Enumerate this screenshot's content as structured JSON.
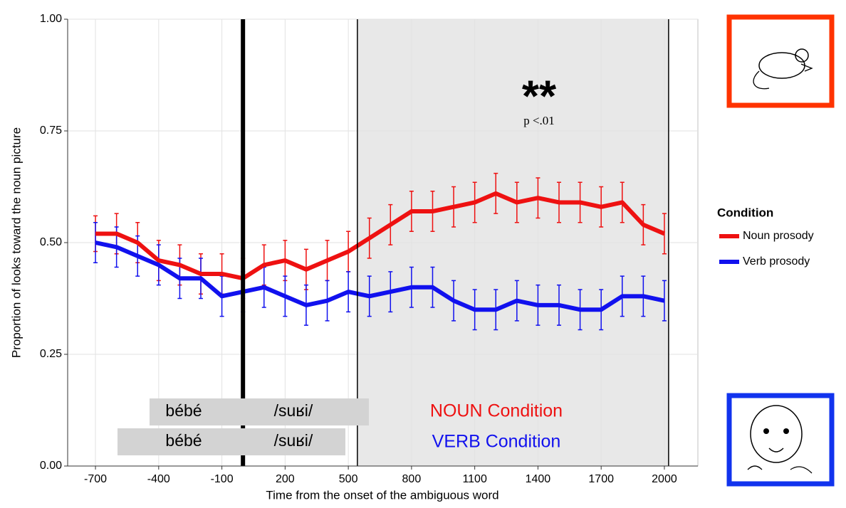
{
  "chart_data": {
    "type": "line",
    "x_label": "Time from the onset of the ambiguous word",
    "y_label": "Proportion of looks toward the noun picture",
    "x": [
      -700,
      -600,
      -500,
      -400,
      -300,
      -200,
      -100,
      0,
      100,
      200,
      300,
      400,
      500,
      600,
      700,
      800,
      900,
      1000,
      1100,
      1200,
      1300,
      1400,
      1500,
      1600,
      1700,
      1800,
      1900,
      2000
    ],
    "series": [
      {
        "name": "Noun prosody",
        "color": "#ee1111",
        "values": [
          0.52,
          0.52,
          0.5,
          0.46,
          0.45,
          0.43,
          0.43,
          0.42,
          0.45,
          0.46,
          0.44,
          0.46,
          0.48,
          0.51,
          0.54,
          0.57,
          0.57,
          0.58,
          0.59,
          0.61,
          0.59,
          0.6,
          0.59,
          0.59,
          0.58,
          0.59,
          0.54,
          0.52
        ],
        "errors": [
          0.04,
          0.045,
          0.045,
          0.045,
          0.045,
          0.045,
          0.045,
          0.045,
          0.045,
          0.045,
          0.045,
          0.045,
          0.045,
          0.045,
          0.045,
          0.045,
          0.045,
          0.045,
          0.045,
          0.045,
          0.045,
          0.045,
          0.045,
          0.045,
          0.045,
          0.045,
          0.045,
          0.045
        ]
      },
      {
        "name": "Verb prosody",
        "color": "#1111ee",
        "values": [
          0.5,
          0.49,
          0.47,
          0.45,
          0.42,
          0.42,
          0.38,
          0.39,
          0.4,
          0.38,
          0.36,
          0.37,
          0.39,
          0.38,
          0.39,
          0.4,
          0.4,
          0.37,
          0.35,
          0.35,
          0.37,
          0.36,
          0.36,
          0.35,
          0.35,
          0.38,
          0.38,
          0.37
        ],
        "errors": [
          0.045,
          0.045,
          0.045,
          0.045,
          0.045,
          0.045,
          0.045,
          0.045,
          0.045,
          0.045,
          0.045,
          0.045,
          0.045,
          0.045,
          0.045,
          0.045,
          0.045,
          0.045,
          0.045,
          0.045,
          0.045,
          0.045,
          0.045,
          0.045,
          0.045,
          0.045,
          0.045,
          0.045
        ]
      }
    ],
    "xlim": [
      -832,
      2159
    ],
    "ylim": [
      0,
      1
    ],
    "xticks": [
      -700,
      -400,
      -100,
      200,
      500,
      800,
      1100,
      1400,
      1700,
      2000
    ],
    "yticks": [
      {
        "value": 0,
        "label": "0.00"
      },
      {
        "value": 0.25,
        "label": "0.25"
      },
      {
        "value": 0.5,
        "label": "0.50"
      },
      {
        "value": 0.75,
        "label": "0.75"
      },
      {
        "value": 1,
        "label": "1.00"
      }
    ],
    "grid": true,
    "legend_title": "Condition",
    "onset_line": 0,
    "shaded_region": [
      543,
      2020
    ],
    "annotations": {
      "stars": "**",
      "p_value": "p <.01",
      "noun_condition": "NOUN Condition",
      "verb_condition": "VERB Condition",
      "noun_row": [
        "bébé",
        "/suʁi/"
      ],
      "verb_row": [
        "bébé",
        "/suʁi/"
      ]
    }
  }
}
